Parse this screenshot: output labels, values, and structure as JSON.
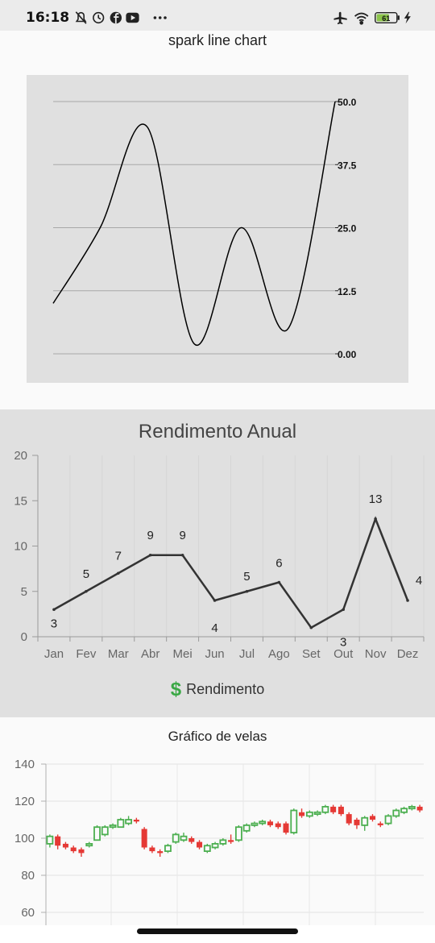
{
  "status_bar": {
    "time": "16:18",
    "left_icons": [
      "bell-off-icon",
      "alarm-icon",
      "facebook-icon",
      "youtube-icon",
      "more-icon"
    ],
    "right_icons": [
      "airplane-icon",
      "wifi-icon",
      "battery-icon",
      "charging-icon"
    ],
    "battery_level": "61",
    "more": "···"
  },
  "chart_data": [
    {
      "type": "line",
      "title": "spark line chart",
      "values": [
        10,
        25,
        45,
        2,
        25,
        5,
        50
      ],
      "y_ticks": [
        "0.00",
        "12.5",
        "25.0",
        "37.5",
        "50.0"
      ],
      "ylim": [
        0,
        50
      ],
      "grid": true,
      "background": "#e0e0e0",
      "line_color": "#000000"
    },
    {
      "type": "line",
      "title": "Rendimento Anual",
      "categories": [
        "Jan",
        "Fev",
        "Mar",
        "Abr",
        "Mei",
        "Jun",
        "Jul",
        "Ago",
        "Set",
        "Out",
        "Nov",
        "Dez"
      ],
      "series": [
        {
          "name": "Rendimento",
          "values": [
            3,
            5,
            7,
            9,
            9,
            4,
            5,
            6,
            1,
            3,
            13,
            4
          ]
        }
      ],
      "data_labels": [
        "3",
        "5",
        "7",
        "9",
        "9",
        "4",
        "5",
        "6",
        "",
        "3",
        "13",
        "4"
      ],
      "ylim": [
        0,
        20
      ],
      "y_ticks": [
        "0",
        "5",
        "10",
        "15",
        "20"
      ],
      "legend": "bottom",
      "legend_icon": "dollar-icon",
      "legend_symbol": "$",
      "line_color": "#333333",
      "legend_color": "#3aa845"
    },
    {
      "type": "candlestick",
      "title": "Gráfico de velas",
      "ylim": [
        60,
        140
      ],
      "y_ticks": [
        "60",
        "80",
        "100",
        "120",
        "140"
      ],
      "up_color": "#4caf50",
      "down_color": "#e53935",
      "candles": [
        {
          "o": 97,
          "c": 101,
          "h": 102,
          "l": 95
        },
        {
          "o": 101,
          "c": 96,
          "h": 102,
          "l": 94
        },
        {
          "o": 97,
          "c": 95,
          "h": 98,
          "l": 94
        },
        {
          "o": 95,
          "c": 93,
          "h": 96,
          "l": 92
        },
        {
          "o": 94,
          "c": 92,
          "h": 95,
          "l": 90
        },
        {
          "o": 96,
          "c": 97,
          "h": 98,
          "l": 95
        },
        {
          "o": 99,
          "c": 106,
          "h": 107,
          "l": 99
        },
        {
          "o": 102,
          "c": 106,
          "h": 107,
          "l": 101
        },
        {
          "o": 106,
          "c": 107,
          "h": 108,
          "l": 105
        },
        {
          "o": 106,
          "c": 110,
          "h": 111,
          "l": 106
        },
        {
          "o": 108,
          "c": 110,
          "h": 112,
          "l": 107
        },
        {
          "o": 110,
          "c": 109,
          "h": 111,
          "l": 108
        },
        {
          "o": 105,
          "c": 95,
          "h": 106,
          "l": 94
        },
        {
          "o": 95,
          "c": 93,
          "h": 96,
          "l": 92
        },
        {
          "o": 93,
          "c": 92,
          "h": 94,
          "l": 90
        },
        {
          "o": 93,
          "c": 96,
          "h": 97,
          "l": 92
        },
        {
          "o": 98,
          "c": 102,
          "h": 103,
          "l": 97
        },
        {
          "o": 99,
          "c": 101,
          "h": 103,
          "l": 98
        },
        {
          "o": 100,
          "c": 98,
          "h": 101,
          "l": 97
        },
        {
          "o": 98,
          "c": 95,
          "h": 99,
          "l": 94
        },
        {
          "o": 93,
          "c": 96,
          "h": 97,
          "l": 92
        },
        {
          "o": 95,
          "c": 97,
          "h": 98,
          "l": 94
        },
        {
          "o": 97,
          "c": 99,
          "h": 100,
          "l": 96
        },
        {
          "o": 99,
          "c": 98,
          "h": 102,
          "l": 97
        },
        {
          "o": 99,
          "c": 106,
          "h": 107,
          "l": 98
        },
        {
          "o": 104,
          "c": 107,
          "h": 108,
          "l": 103
        },
        {
          "o": 107,
          "c": 108,
          "h": 109,
          "l": 106
        },
        {
          "o": 108,
          "c": 109,
          "h": 110,
          "l": 107
        },
        {
          "o": 109,
          "c": 107,
          "h": 110,
          "l": 106
        },
        {
          "o": 108,
          "c": 106,
          "h": 109,
          "l": 105
        },
        {
          "o": 108,
          "c": 103,
          "h": 109,
          "l": 102
        },
        {
          "o": 103,
          "c": 115,
          "h": 116,
          "l": 102
        },
        {
          "o": 114,
          "c": 112,
          "h": 116,
          "l": 111
        },
        {
          "o": 112,
          "c": 114,
          "h": 115,
          "l": 111
        },
        {
          "o": 113,
          "c": 114,
          "h": 115,
          "l": 112
        },
        {
          "o": 114,
          "c": 117,
          "h": 118,
          "l": 113
        },
        {
          "o": 117,
          "c": 114,
          "h": 118,
          "l": 113
        },
        {
          "o": 117,
          "c": 113,
          "h": 118,
          "l": 112
        },
        {
          "o": 113,
          "c": 108,
          "h": 114,
          "l": 107
        },
        {
          "o": 110,
          "c": 107,
          "h": 111,
          "l": 105
        },
        {
          "o": 107,
          "c": 111,
          "h": 112,
          "l": 104
        },
        {
          "o": 112,
          "c": 110,
          "h": 113,
          "l": 109
        },
        {
          "o": 108,
          "c": 107,
          "h": 109,
          "l": 106
        },
        {
          "o": 108,
          "c": 112,
          "h": 113,
          "l": 107
        },
        {
          "o": 112,
          "c": 115,
          "h": 116,
          "l": 111
        },
        {
          "o": 114,
          "c": 116,
          "h": 117,
          "l": 113
        },
        {
          "o": 116,
          "c": 117,
          "h": 118,
          "l": 115
        },
        {
          "o": 117,
          "c": 115,
          "h": 118,
          "l": 114
        }
      ]
    }
  ]
}
